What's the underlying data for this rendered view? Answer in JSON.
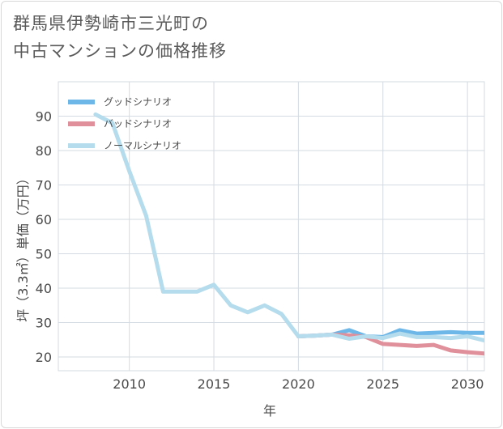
{
  "title": {
    "line1": "群馬県伊勢崎市三光町の",
    "line2": "中古マンションの価格推移"
  },
  "chart_data": {
    "type": "line",
    "xlabel": "年",
    "ylabel": "坪（3.3㎡）単価（万円）",
    "xlim": [
      2005.8,
      2031
    ],
    "ylim": [
      16,
      100
    ],
    "xticks": [
      2010,
      2015,
      2020,
      2025,
      2030
    ],
    "yticks": [
      20,
      30,
      40,
      50,
      60,
      70,
      80,
      90
    ],
    "legend_position": "top-left",
    "series": [
      {
        "name": "グッドシナリオ",
        "color": "#6cb6e8",
        "x": [
          2020,
          2021,
          2022,
          2023,
          2024,
          2025,
          2026,
          2027,
          2028,
          2029,
          2030,
          2031
        ],
        "values": [
          26,
          26.2,
          26.5,
          27.8,
          26,
          25.8,
          27.8,
          26.8,
          27,
          27.2,
          27,
          27
        ]
      },
      {
        "name": "バッドシナリオ",
        "color": "#e0909a",
        "x": [
          2020,
          2021,
          2022,
          2023,
          2024,
          2025,
          2026,
          2027,
          2028,
          2029,
          2030,
          2031
        ],
        "values": [
          26,
          26.2,
          26.5,
          26.3,
          25.8,
          23.8,
          23.5,
          23.2,
          23.5,
          21.9,
          21.4,
          21
        ]
      },
      {
        "name": "ノーマルシナリオ",
        "color": "#b4dcec",
        "x": [
          2008,
          2009,
          2010,
          2011,
          2012,
          2013,
          2014,
          2015,
          2016,
          2017,
          2018,
          2019,
          2020,
          2021,
          2022,
          2023,
          2024,
          2025,
          2026,
          2027,
          2028,
          2029,
          2030,
          2031
        ],
        "values": [
          90.5,
          88,
          74,
          61,
          39,
          39,
          39,
          41,
          35,
          33,
          35,
          32.5,
          26,
          26.2,
          26.5,
          25.3,
          26,
          25.5,
          26.8,
          25.8,
          25.8,
          25.5,
          26,
          24.8
        ]
      }
    ]
  }
}
